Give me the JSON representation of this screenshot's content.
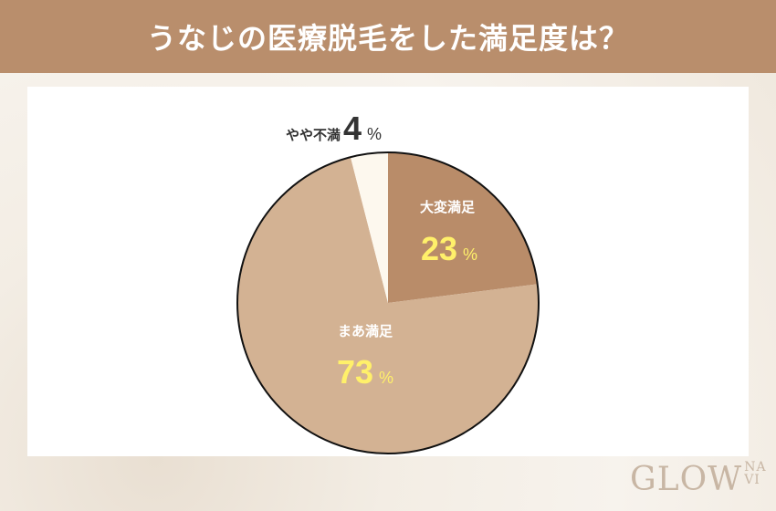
{
  "header": {
    "title": "うなじの医療脱毛をした満足度は？"
  },
  "logo": {
    "main": "GLOW",
    "sub": "NAVI"
  },
  "chart_data": {
    "type": "pie",
    "title": "うなじの医療脱毛をした満足度は？",
    "start": "top",
    "direction": "clockwise",
    "unit": "%",
    "slices": [
      {
        "label": "大変満足",
        "value": 23,
        "color": "#b98c69",
        "label_color": "#ffffff",
        "value_color": "#fff06a"
      },
      {
        "label": "まあ満足",
        "value": 73,
        "color": "#d3b293",
        "label_color": "#ffffff",
        "value_color": "#fff06a"
      },
      {
        "label": "やや不満",
        "value": 4,
        "color": "#fdf8ee",
        "label_color": "#333333",
        "value_color": "#333333"
      }
    ]
  }
}
